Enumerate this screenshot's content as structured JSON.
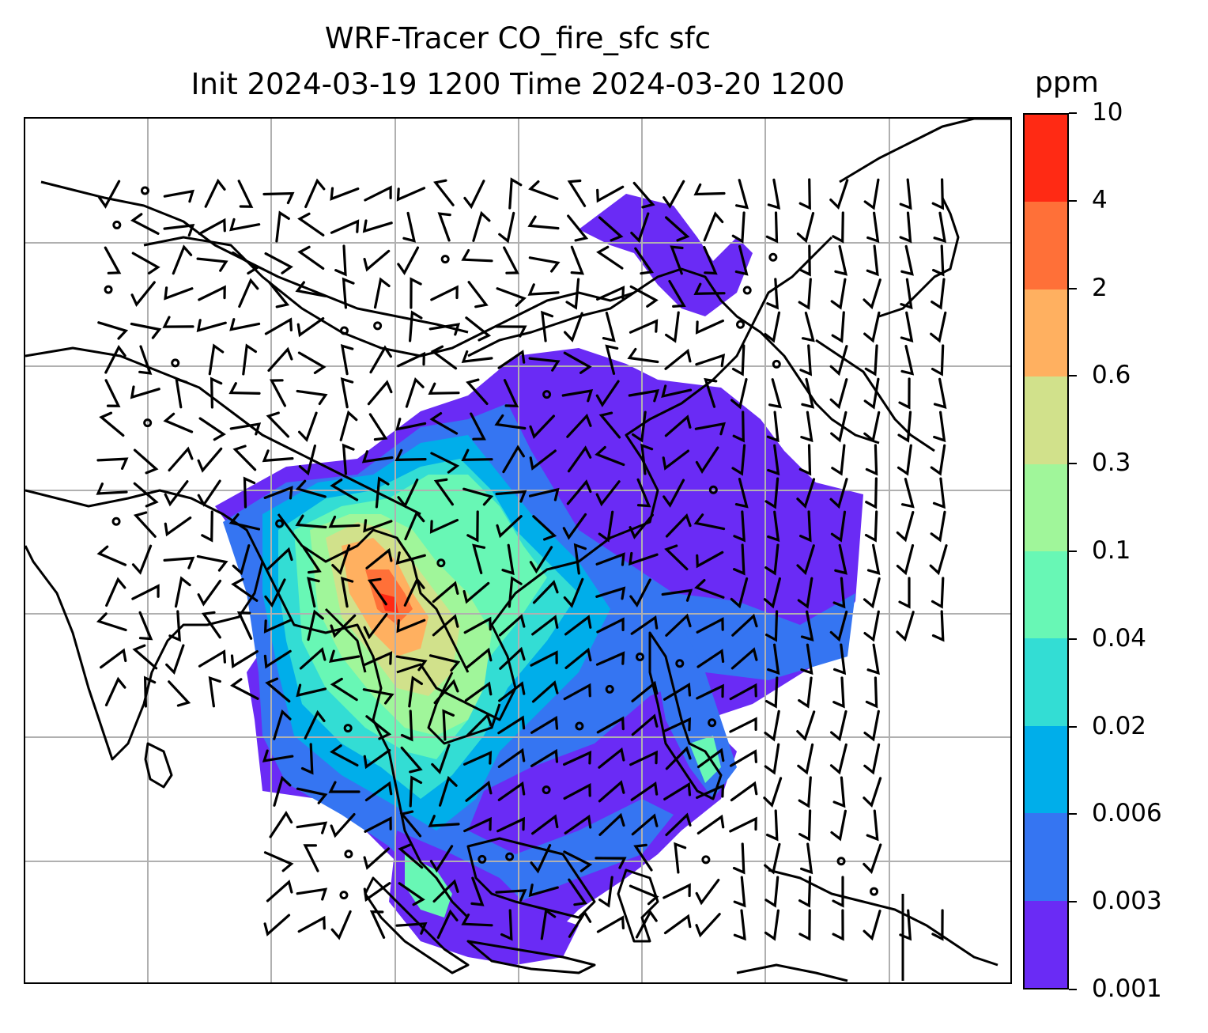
{
  "title_line1": "WRF-Tracer CO_fire_sfc sfc",
  "title_line2": "Init 2024-03-19 1200 Time 2024-03-20 1200",
  "colorbar": {
    "unit": "ppm",
    "levels": [
      "0.001",
      "0.003",
      "0.006",
      "0.02",
      "0.04",
      "0.1",
      "0.3",
      "0.6",
      "2",
      "4",
      "10"
    ],
    "colors": [
      "#6a2bf5",
      "#3575f2",
      "#00aeea",
      "#33ddd4",
      "#68f7b5",
      "#a0f69a",
      "#d1e18b",
      "#ffb060",
      "#ff7038",
      "#ff2a14"
    ]
  },
  "map": {
    "variable": "CO_fire_sfc",
    "level": "sfc",
    "features": [
      "coastlines",
      "country-borders",
      "lat-lon-gridlines",
      "wind-barbs",
      "calm-wind-circles"
    ]
  }
}
